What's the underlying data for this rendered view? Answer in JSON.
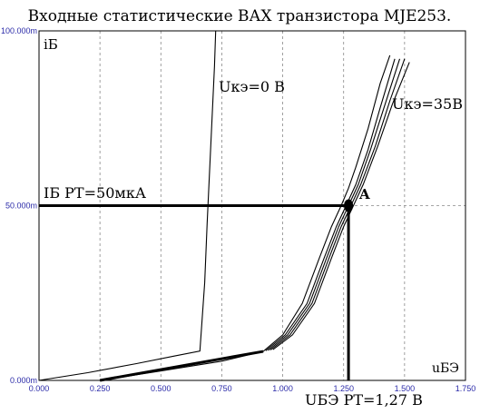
{
  "chart_data": {
    "type": "line",
    "title": "Входные статистические ВАХ транзистора MJE253.",
    "xlabel": "uБЭ",
    "ylabel": "iБ",
    "xlim": [
      0,
      1.75
    ],
    "ylim": [
      0,
      100
    ],
    "x_ticks": [
      "0.000",
      "0.250",
      "0.500",
      "0.750",
      "1.000",
      "1.250",
      "1.500",
      "1.750"
    ],
    "y_ticks": [
      "0.000m",
      "50.000m",
      "100.000m"
    ],
    "grid": true,
    "series": [
      {
        "name": "Uкэ=0 В",
        "x": [
          0.0,
          0.2,
          0.4,
          0.55,
          0.66,
          0.68,
          0.69,
          0.7,
          0.71,
          0.72,
          0.725
        ],
        "y": [
          0,
          2.2,
          4.8,
          6.9,
          8.4,
          28,
          45,
          60,
          75,
          90,
          100
        ]
      },
      {
        "name": "",
        "x": [
          0.25,
          0.5,
          0.75,
          0.92,
          1.0,
          1.08,
          1.15,
          1.2,
          1.24,
          1.27,
          1.3,
          1.35,
          1.4,
          1.44
        ],
        "y": [
          0,
          2.7,
          5.5,
          8.3,
          13,
          22,
          35,
          44,
          50,
          55,
          61,
          72,
          85,
          93
        ]
      },
      {
        "name": "",
        "x": [
          0.93,
          1.01,
          1.1,
          1.17,
          1.22,
          1.26,
          1.3,
          1.35,
          1.4,
          1.46
        ],
        "y": [
          8.5,
          13,
          22,
          35,
          44,
          50,
          56,
          66,
          78,
          92
        ]
      },
      {
        "name": "",
        "x": [
          0.94,
          1.02,
          1.11,
          1.18,
          1.23,
          1.27,
          1.31,
          1.36,
          1.42,
          1.48
        ],
        "y": [
          8.6,
          13,
          22,
          35,
          44,
          50,
          56,
          66,
          79,
          92
        ]
      },
      {
        "name": "",
        "x": [
          0.95,
          1.03,
          1.12,
          1.19,
          1.24,
          1.28,
          1.32,
          1.38,
          1.44,
          1.5
        ],
        "y": [
          8.7,
          13,
          22,
          35,
          44,
          50,
          56,
          67,
          80,
          92
        ]
      },
      {
        "name": "Uкэ=35В",
        "x": [
          0.96,
          1.04,
          1.13,
          1.2,
          1.25,
          1.29,
          1.33,
          1.39,
          1.45,
          1.52
        ],
        "y": [
          8.8,
          13,
          22,
          35,
          44,
          50,
          56,
          67,
          79,
          91
        ]
      }
    ],
    "operating_point": {
      "label": "A",
      "x": 1.27,
      "y": 50,
      "x_label": "UБЭ РТ=1,27 В",
      "y_label": "IБ РТ=50мкА"
    }
  }
}
